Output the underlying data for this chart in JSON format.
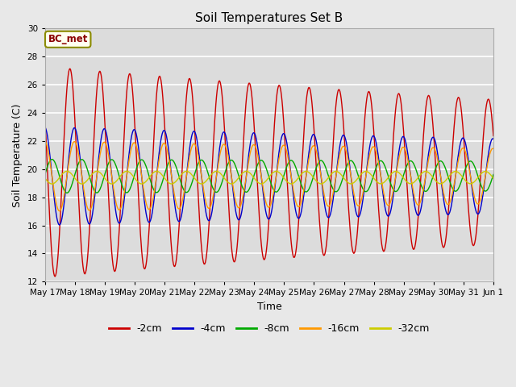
{
  "title": "Soil Temperatures Set B",
  "xlabel": "Time",
  "ylabel": "Soil Temperature (C)",
  "ylim": [
    12,
    30
  ],
  "yticks": [
    12,
    14,
    16,
    18,
    20,
    22,
    24,
    26,
    28,
    30
  ],
  "annotation": "BC_met",
  "fig_bg_color": "#e8e8e8",
  "plot_bg_color": "#dcdcdc",
  "series": [
    {
      "label": "-2cm",
      "color": "#cc0000",
      "amplitude": 7.5,
      "mean": 19.8,
      "phase_shift": 0.0,
      "decay": 0.025
    },
    {
      "label": "-4cm",
      "color": "#0000cc",
      "amplitude": 3.5,
      "mean": 19.5,
      "phase_shift": 0.15,
      "decay": 0.018
    },
    {
      "label": "-8cm",
      "color": "#00aa00",
      "amplitude": 1.2,
      "mean": 19.5,
      "phase_shift": 0.4,
      "decay": 0.008
    },
    {
      "label": "-16cm",
      "color": "#ff9900",
      "amplitude": 2.5,
      "mean": 19.5,
      "phase_shift": 0.15,
      "decay": 0.016
    },
    {
      "label": "-32cm",
      "color": "#cccc00",
      "amplitude": 0.45,
      "mean": 19.4,
      "phase_shift": 0.9,
      "decay": 0.002
    }
  ],
  "x_start_day": 17,
  "x_end_day": 32,
  "period_days": 1.0,
  "samples_per_day": 48,
  "xtick_days": [
    17,
    18,
    19,
    20,
    21,
    22,
    23,
    24,
    25,
    26,
    27,
    28,
    29,
    30,
    31,
    32
  ],
  "xtick_labels": [
    "May 17",
    "May 18",
    "May 19",
    "May 20",
    "May 21",
    "May 22",
    "May 23",
    "May 24",
    "May 25",
    "May 26",
    "May 27",
    "May 28",
    "May 29",
    "May 30",
    "May 31",
    "Jun 1"
  ],
  "legend_ncol": 5,
  "figsize": [
    6.4,
    4.8
  ],
  "dpi": 100
}
